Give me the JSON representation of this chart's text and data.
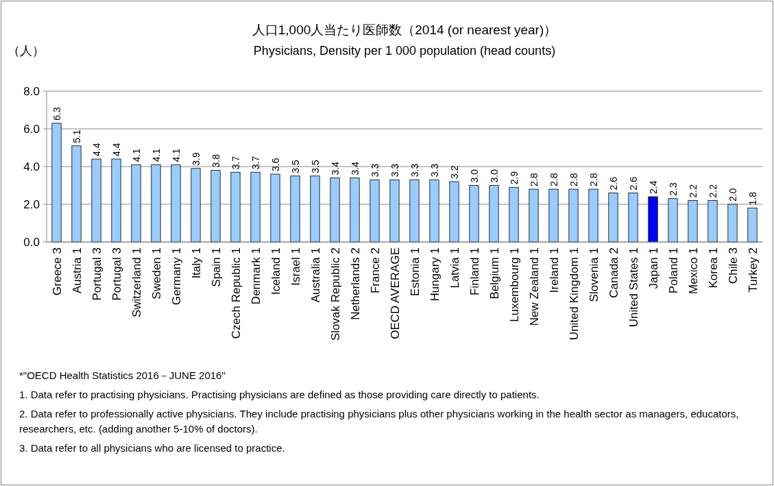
{
  "chart_data": {
    "type": "bar",
    "title": "人口1,000人当たり医師数（2014 (or nearest year)）",
    "subtitle": "Physicians, Density per 1 000 population (head counts)",
    "ylabel": "（人）",
    "categories": [
      "Greece 3",
      "Austria 1",
      "Portugal 3",
      "Portugal 3",
      "Switzerland 1",
      "Sweden 1",
      "Germany 1",
      "Italy 1",
      "Spain 1",
      "Czech Republic 1",
      "Denmark 1",
      "Iceland 1",
      "Israel 1",
      "Australia 1",
      "Slovak Republic 2",
      "Netherlands 2",
      "France 2",
      "OECD AVERAGE",
      "Estonia 1",
      "Hungary 1",
      "Latvia 1",
      "Finland 1",
      "Belgium 1",
      "Luxembourg 1",
      "New Zealand 1",
      "Ireland 1",
      "United Kingdom 1",
      "Slovenia 1",
      "Canada 2",
      "United States 1",
      "Japan 1",
      "Poland 1",
      "Mexico 1",
      "Korea 1",
      "Chile 3",
      "Turkey 2"
    ],
    "values": [
      6.3,
      5.1,
      4.4,
      4.4,
      4.1,
      4.1,
      4.1,
      3.9,
      3.8,
      3.7,
      3.7,
      3.6,
      3.5,
      3.5,
      3.4,
      3.4,
      3.3,
      3.3,
      3.3,
      3.3,
      3.2,
      3.0,
      3.0,
      2.9,
      2.8,
      2.8,
      2.8,
      2.8,
      2.6,
      2.6,
      2.4,
      2.3,
      2.2,
      2.2,
      2.0,
      1.8
    ],
    "value_labels": [
      "6.3",
      "5.1",
      "4.4",
      "4.4",
      "4.1",
      "4.1",
      "4.1",
      "3.9",
      "3.8",
      "3.7",
      "3.7",
      "3.6",
      "3.5",
      "3.5",
      "3.4",
      "3.4",
      "3.3",
      "3.3",
      "3.3",
      "3.3",
      "3.2",
      "3.0",
      "3.0",
      "2.9",
      "2.8",
      "2.8",
      "2.8",
      "2.8",
      "2.6",
      "2.6",
      "2.4",
      "2.3",
      "2.2",
      "2.2",
      "2.0",
      "1.8"
    ],
    "colors": [
      "#99ccff",
      "#99ccff",
      "#99ccff",
      "#99ccff",
      "#99ccff",
      "#99ccff",
      "#99ccff",
      "#99ccff",
      "#99ccff",
      "#99ccff",
      "#99ccff",
      "#99ccff",
      "#99ccff",
      "#99ccff",
      "#99ccff",
      "#99ccff",
      "#99ccff",
      "#99ccff",
      "#99ccff",
      "#99ccff",
      "#99ccff",
      "#99ccff",
      "#99ccff",
      "#99ccff",
      "#99ccff",
      "#99ccff",
      "#99ccff",
      "#99ccff",
      "#99ccff",
      "#99ccff",
      "#0000ff",
      "#99ccff",
      "#99ccff",
      "#99ccff",
      "#99ccff",
      "#99ccff"
    ],
    "ylim": [
      0,
      8
    ],
    "yticks": [
      {
        "value": 0,
        "label": "0.0"
      },
      {
        "value": 2,
        "label": "2.0"
      },
      {
        "value": 4,
        "label": "4.0"
      },
      {
        "value": 6,
        "label": "6.0"
      },
      {
        "value": 8,
        "label": "8.0"
      }
    ],
    "grid": "y",
    "annotations": [
      "*\"OECD Health Statistics 2016－JUNE 2016\"",
      "1. Data refer to practising physicians. Practising physicians are defined as those providing care directly to patients.",
      "2. Data refer to professionally active physicians. They include practising physicians plus other physicians working in the health sector as managers, educators, researchers, etc. (adding another 5-10% of doctors).",
      "3. Data refer to all physicians who are licensed to practice."
    ]
  }
}
